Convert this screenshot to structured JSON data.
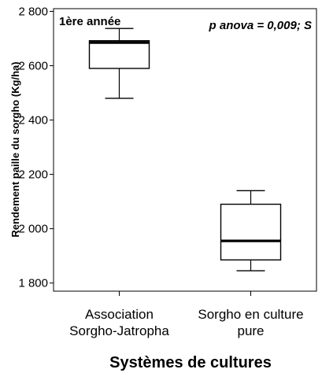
{
  "chart_data": {
    "type": "box",
    "xlabel": "Systèmes de cultures",
    "ylabel": "Rendement paille du sorgho (Kg/ha)",
    "annotation_left": "1ère année",
    "annotation_right": "p anova = 0,009; S",
    "ylim": [
      1770,
      2810
    ],
    "yticks": [
      1800,
      2000,
      2200,
      2400,
      2600,
      2800
    ],
    "ytick_labels": [
      "1 800",
      "2 000",
      "2 200",
      "2 400",
      "2 600",
      "2 800"
    ],
    "grid": false,
    "categories": [
      {
        "lines": [
          "Association",
          "Sorgho-Jatropha"
        ]
      },
      {
        "lines": [
          "Sorgho en culture",
          "pure"
        ]
      }
    ],
    "boxes": [
      {
        "whisker_low": 2480,
        "q1": 2590,
        "median": 2685,
        "q3": 2692,
        "whisker_high": 2737
      },
      {
        "whisker_low": 1845,
        "q1": 1885,
        "median": 1955,
        "q3": 2090,
        "whisker_high": 2140
      }
    ]
  }
}
